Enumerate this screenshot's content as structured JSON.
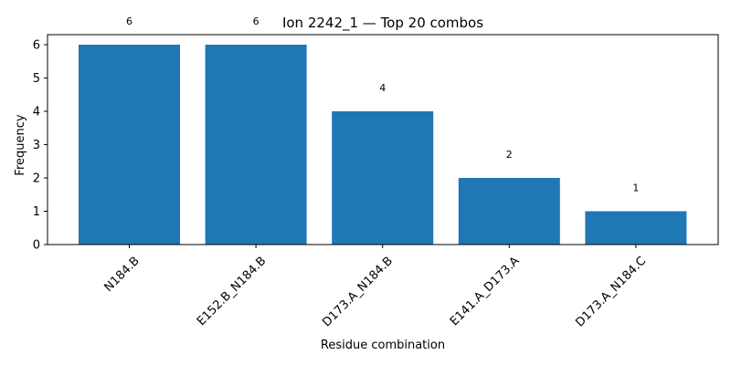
{
  "chart_data": {
    "type": "bar",
    "title": "Ion 2242_1 — Top 20 combos",
    "xlabel": "Residue combination",
    "ylabel": "Frequency",
    "categories": [
      "N184.B",
      "E152.B_N184.B",
      "D173.A_N184.B",
      "E141.A_D173.A",
      "D173.A_N184.C"
    ],
    "values": [
      6,
      6,
      4,
      2,
      1
    ],
    "data_labels": [
      "6",
      "6",
      "4",
      "2",
      "1"
    ],
    "yticks": [
      0,
      1,
      2,
      3,
      4,
      5,
      6
    ],
    "ylim": [
      0,
      6.3
    ],
    "grid": false,
    "bar_color": "#1f77b4"
  }
}
